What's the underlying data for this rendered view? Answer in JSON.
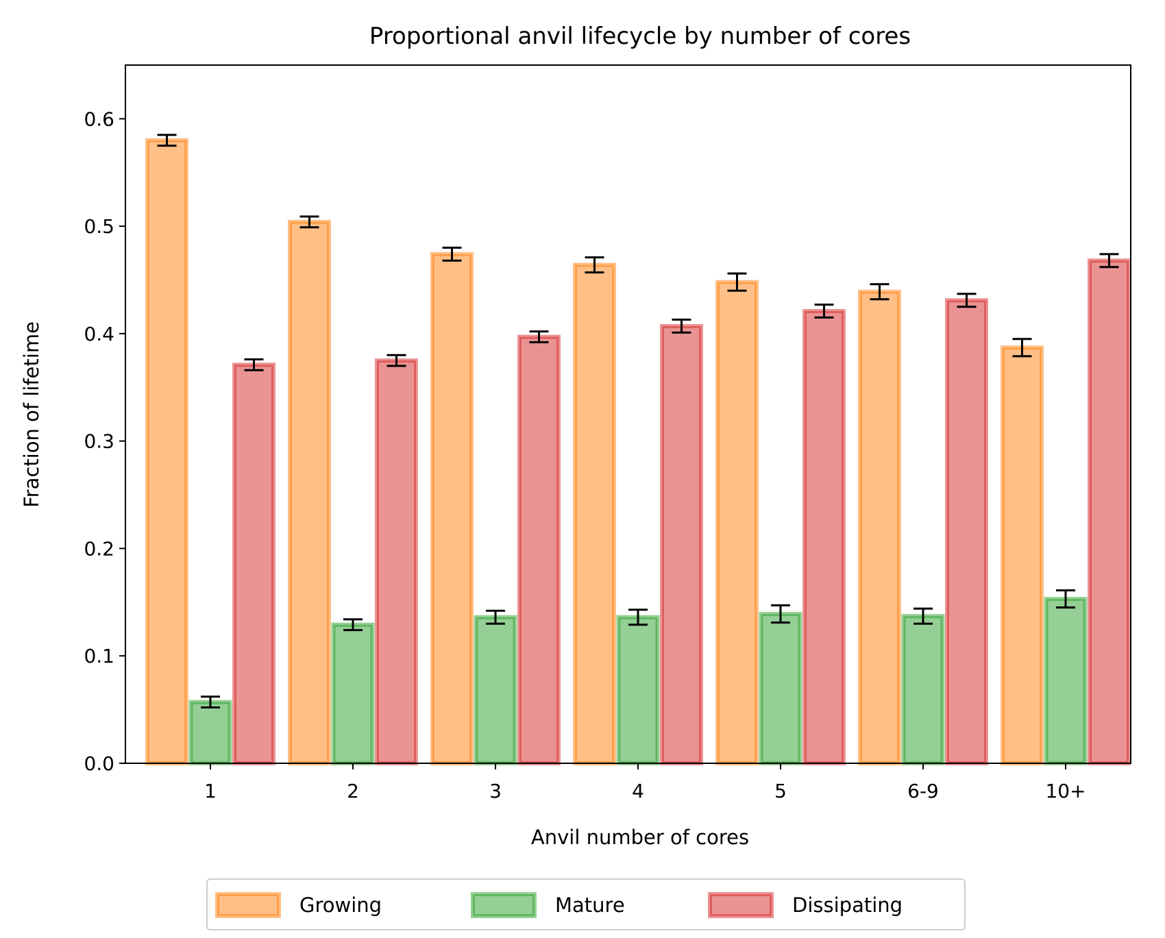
{
  "chart_data": {
    "type": "bar",
    "title": "Proportional anvil lifecycle by number of cores",
    "xlabel": "Anvil number of cores",
    "ylabel": "Fraction of lifetime",
    "categories": [
      "1",
      "2",
      "3",
      "4",
      "5",
      "6-9",
      "10+"
    ],
    "ylim": [
      0.0,
      0.65
    ],
    "yticks": [
      "0.0",
      "0.1",
      "0.2",
      "0.3",
      "0.4",
      "0.5",
      "0.6"
    ],
    "grid": false,
    "legend_position": "bottom-center",
    "series": [
      {
        "name": "Growing",
        "color": "#ff7f0e",
        "values": [
          0.58,
          0.504,
          0.474,
          0.464,
          0.448,
          0.439,
          0.387
        ],
        "errors": [
          0.005,
          0.005,
          0.006,
          0.007,
          0.008,
          0.007,
          0.008
        ]
      },
      {
        "name": "Mature",
        "color": "#2ca02c",
        "values": [
          0.057,
          0.129,
          0.136,
          0.136,
          0.139,
          0.137,
          0.153
        ],
        "errors": [
          0.005,
          0.005,
          0.006,
          0.007,
          0.008,
          0.007,
          0.008
        ]
      },
      {
        "name": "Dissipating",
        "color": "#d62728",
        "values": [
          0.371,
          0.375,
          0.397,
          0.407,
          0.421,
          0.431,
          0.468
        ],
        "errors": [
          0.005,
          0.005,
          0.005,
          0.006,
          0.006,
          0.006,
          0.006
        ]
      }
    ]
  }
}
